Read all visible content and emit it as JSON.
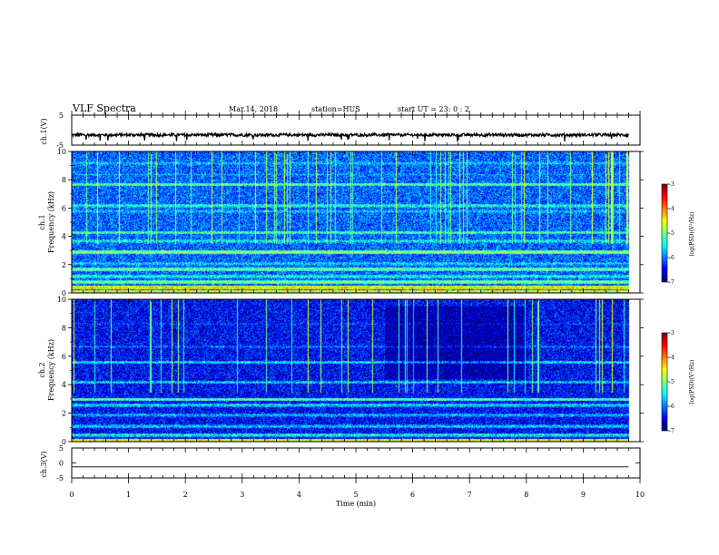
{
  "figure": {
    "title": "VLF Spectra",
    "date": "Mar.14, 2018",
    "station": "station=HUS",
    "start": "start UT =  23: 0  : 2"
  },
  "chart_data": [
    {
      "type": "line",
      "panel": "ch1-waveform",
      "ylabel": "ch.1(V)",
      "ylim": [
        -5,
        5
      ],
      "yticks": [
        "5",
        "-5"
      ],
      "baseline": -1.6,
      "noise_amplitude": 0.5,
      "x_range_min": [
        0,
        9.8
      ]
    },
    {
      "type": "heatmap",
      "panel": "ch1-spectrogram",
      "ylabel_top": "ch.1",
      "ylabel": "Frequency (kHz)",
      "ylim": [
        0,
        10
      ],
      "yticks": [
        "0",
        "2",
        "4",
        "6",
        "8",
        "10"
      ],
      "x_range_min": [
        0,
        9.8
      ],
      "colorbar": {
        "label": "log(PSD)(V²/Hz)",
        "ticks": [
          "-3",
          "-4",
          "-5",
          "-6",
          "-7"
        ],
        "range": [
          -7,
          -3
        ]
      },
      "bands": [
        {
          "freq": 0.4,
          "level": -4.3
        },
        {
          "freq": 0.8,
          "level": -4.9
        },
        {
          "freq": 1.2,
          "level": -5.3
        },
        {
          "freq": 1.7,
          "level": -5.0
        },
        {
          "freq": 2.1,
          "level": -5.5
        },
        {
          "freq": 2.9,
          "level": -4.8
        },
        {
          "freq": 3.7,
          "level": -5.4
        },
        {
          "freq": 4.3,
          "level": -5.2
        },
        {
          "freq": 5.8,
          "level": -5.6
        },
        {
          "freq": 6.2,
          "level": -5.3
        },
        {
          "freq": 7.7,
          "level": -5.1
        },
        {
          "freq": 8.4,
          "level": -5.8
        },
        {
          "freq": 9.2,
          "level": -5.6
        }
      ],
      "background_level": -6.1
    },
    {
      "type": "heatmap",
      "panel": "ch2-spectrogram",
      "ylabel_top": "ch.2",
      "ylabel": "Frequency (kHz)",
      "ylim": [
        0,
        10
      ],
      "yticks": [
        "0",
        "2",
        "4",
        "6",
        "8",
        "10"
      ],
      "x_range_min": [
        0,
        9.8
      ],
      "colorbar": {
        "label": "log(PSD)(V²/Hz)",
        "ticks": [
          "-3",
          "-4",
          "-5",
          "-6",
          "-7"
        ],
        "range": [
          -7,
          -3
        ]
      },
      "bands": [
        {
          "freq": 0.5,
          "level": -5.4
        },
        {
          "freq": 1.1,
          "level": -5.6
        },
        {
          "freq": 1.9,
          "level": -5.7
        },
        {
          "freq": 2.6,
          "level": -5.5
        },
        {
          "freq": 3.0,
          "level": -5.1
        },
        {
          "freq": 4.2,
          "level": -5.6
        },
        {
          "freq": 5.6,
          "level": -5.5
        },
        {
          "freq": 6.7,
          "level": -6.0
        },
        {
          "freq": 8.3,
          "level": -6.2
        }
      ],
      "background_level": -6.5
    },
    {
      "type": "line",
      "panel": "ch3-waveform",
      "ylabel": "ch.3(V)",
      "ylim": [
        -5,
        5
      ],
      "yticks": [
        "5",
        "0",
        "-5"
      ],
      "baseline": -1.3,
      "noise_amplitude": 0,
      "x_range_min": [
        0,
        9.8
      ]
    }
  ],
  "x_axis": {
    "label": "Time (min)",
    "ticks": [
      "0",
      "1",
      "2",
      "3",
      "4",
      "5",
      "6",
      "7",
      "8",
      "9",
      "10"
    ],
    "range": [
      0,
      10
    ]
  }
}
